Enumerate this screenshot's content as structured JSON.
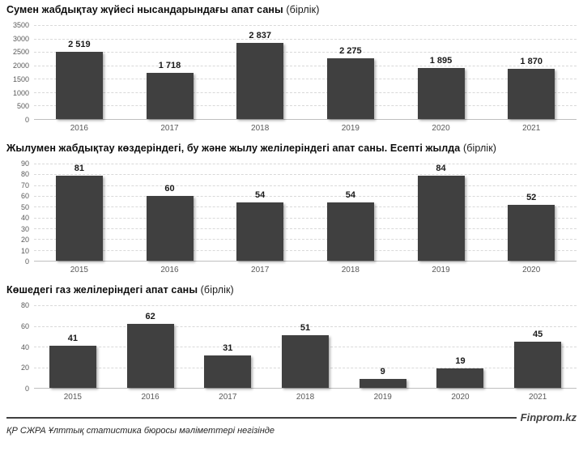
{
  "colors": {
    "bar": "#404040",
    "gridline": "#d9d9d9",
    "axis_text": "#595959",
    "value_label_text": "#1a1a1a"
  },
  "footer": {
    "watermark": "Finprom.kz",
    "source_note": "ҚР СЖРА Ұлттық статистика бюросы мәліметтері негізінде"
  },
  "chart_data": [
    {
      "type": "bar",
      "title": "Сумен жабдықтау жүйесі нысандарындағы апат саны",
      "title_unit": "(бірлік)",
      "categories": [
        "2016",
        "2017",
        "2018",
        "2019",
        "2020",
        "2021"
      ],
      "values": [
        2519,
        1718,
        2837,
        2275,
        1895,
        1870
      ],
      "value_labels": [
        "2 519",
        "1 718",
        "2 837",
        "2 275",
        "1 895",
        "1 870"
      ],
      "ylim": [
        0,
        3500
      ],
      "yticks": [
        3500,
        3000,
        2500,
        2000,
        1500,
        1000,
        500,
        0
      ],
      "grid": "dashed horizontal",
      "legend": "none",
      "xlabel": "",
      "ylabel": ""
    },
    {
      "type": "bar",
      "title": "Жылумен жабдықтау көздеріндегі, бу және жылу желілеріндегі апат саны. Есепті жылда",
      "title_unit": "(бірлік)",
      "categories": [
        "2015",
        "2016",
        "2017",
        "2018",
        "2019",
        "2020"
      ],
      "values": [
        81,
        60,
        54,
        54,
        84,
        52
      ],
      "value_labels": [
        "81",
        "60",
        "54",
        "54",
        "84",
        "52"
      ],
      "ylim": [
        0,
        90
      ],
      "yticks": [
        90,
        80,
        70,
        60,
        50,
        40,
        30,
        20,
        10,
        0
      ],
      "grid": "dashed horizontal",
      "legend": "none",
      "xlabel": "",
      "ylabel": ""
    },
    {
      "type": "bar",
      "title": "Көшедегі газ желілеріндегі апат саны",
      "title_unit": "(бірлік)",
      "categories": [
        "2015",
        "2016",
        "2017",
        "2018",
        "2019",
        "2020",
        "2021"
      ],
      "values": [
        41,
        62,
        31,
        51,
        9,
        19,
        45
      ],
      "value_labels": [
        "41",
        "62",
        "31",
        "51",
        "9",
        "19",
        "45"
      ],
      "ylim": [
        0,
        80
      ],
      "yticks": [
        80,
        60,
        40,
        20,
        0
      ],
      "grid": "dashed horizontal",
      "legend": "none",
      "xlabel": "",
      "ylabel": ""
    }
  ]
}
